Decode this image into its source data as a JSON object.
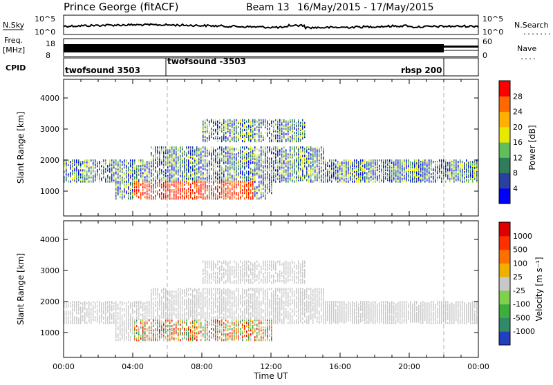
{
  "header": {
    "station": "Prince George (fitACF)",
    "beam": "Beam 13",
    "dates": "16/May/2015 - 17/May/2015"
  },
  "top_panels": {
    "nsky_label": "N.Sky",
    "nsky_ticks": [
      "10^5",
      "10^0"
    ],
    "nsearch_label": "N.Search",
    "nsearch_ticks": [
      "10^5",
      "10^0"
    ],
    "freq_label_1": "Freq.",
    "freq_label_2": "[MHz]",
    "freq_ticks": [
      "18",
      "8"
    ],
    "nave_label": "Nave",
    "nave_ticks": [
      "60",
      "0"
    ],
    "cpid_label": "CPID",
    "cpid_modes": [
      {
        "label": "twofsound 3503",
        "start_hour": 0.0
      },
      {
        "label": "twofsound -3503",
        "start_hour": 6.0
      },
      {
        "label": "rbsp 200",
        "start_hour": 22.0
      }
    ]
  },
  "chart_data": [
    {
      "type": "heatmap",
      "name": "power",
      "ylabel": "Slant Range [km]",
      "ylim": [
        200,
        4600
      ],
      "yticks": [
        "4000",
        "3000",
        "2000",
        "1000"
      ],
      "xlim_hours": [
        0,
        24
      ],
      "colorbar_label": "Power [dB]",
      "colorbar_ticks": [
        "28",
        "24",
        "20",
        "16",
        "12",
        "8",
        "4"
      ],
      "colorbar_colors": [
        "#0000ff",
        "#2a3fa0",
        "#2f7d5a",
        "#5fbf5a",
        "#e8e800",
        "#ffb000",
        "#ff6a00",
        "#ff0000"
      ]
    },
    {
      "type": "heatmap",
      "name": "velocity",
      "ylabel": "Slant Range [km]",
      "ylim": [
        200,
        4600
      ],
      "yticks": [
        "4000",
        "3000",
        "2000",
        "1000"
      ],
      "xlim_hours": [
        0,
        24
      ],
      "colorbar_label": "Velocity [m s⁻¹]",
      "colorbar_ticks": [
        "1000",
        "500",
        "100",
        "25",
        "-25",
        "-100",
        "-500",
        "-1000"
      ],
      "colorbar_colors": [
        "#2040c0",
        "#2f8a6a",
        "#3cae3c",
        "#7fd04a",
        "#c8c8c8",
        "#f0b000",
        "#ff7000",
        "#ff3000",
        "#e00000"
      ]
    }
  ],
  "xaxis": {
    "label": "Time UT",
    "ticks": [
      "00:00",
      "04:00",
      "08:00",
      "12:00",
      "16:00",
      "20:00",
      "00:00"
    ]
  }
}
